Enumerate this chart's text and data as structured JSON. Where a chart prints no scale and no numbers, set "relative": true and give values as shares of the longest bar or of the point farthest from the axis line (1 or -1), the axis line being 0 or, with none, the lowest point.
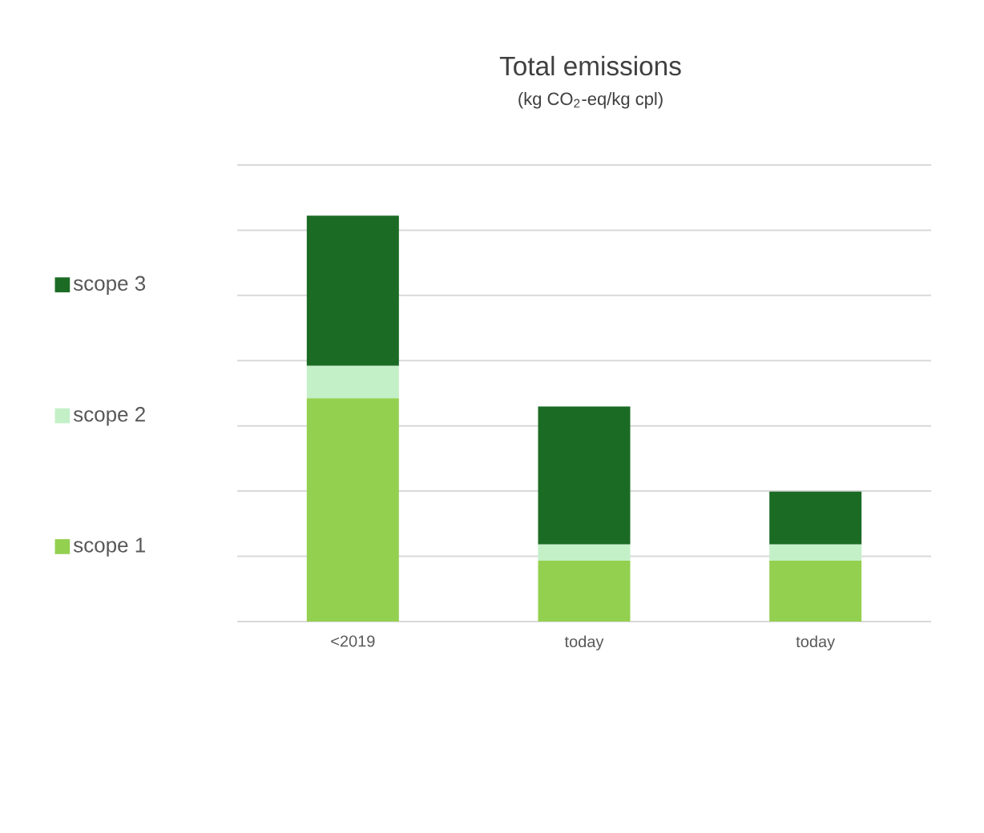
{
  "chart_data": {
    "type": "bar",
    "title": "Total emissions",
    "subtitle": "(kg CO$_{2}$-eq/kg cpl)",
    "categories": [
      "<2019",
      "today",
      "today"
    ],
    "stacked": true,
    "relative": true,
    "series": [
      {
        "name": "scope 1",
        "color": "#94d050",
        "values": [
          0.55,
          0.15,
          0.15
        ]
      },
      {
        "name": "scope 2",
        "color": "#c4f0c8",
        "values": [
          0.08,
          0.04,
          0.04
        ]
      },
      {
        "name": "scope 3",
        "color": "#1b6b24",
        "values": [
          0.37,
          0.34,
          0.13
        ]
      }
    ],
    "grid": "y",
    "legend": "left"
  }
}
